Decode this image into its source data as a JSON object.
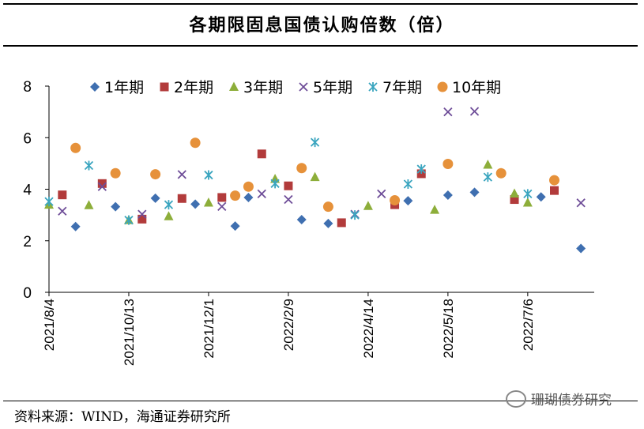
{
  "header": {
    "title": "各期限固息国债认购倍数（倍）"
  },
  "footer": {
    "source": "资料来源：WIND，海通证券研究所",
    "watermark": "珊瑚债券研究"
  },
  "chart_data": {
    "type": "scatter",
    "title": "各期限固息国债认购倍数（倍）",
    "xlabel": "",
    "ylabel": "",
    "ylim": [
      0,
      8
    ],
    "yticks": [
      0,
      2,
      4,
      6,
      8
    ],
    "xlim": [
      0,
      20.5
    ],
    "xticks": [
      {
        "pos": 0,
        "label": "2021/8/4"
      },
      {
        "pos": 3,
        "label": "2021/10/13"
      },
      {
        "pos": 6,
        "label": "2021/12/1"
      },
      {
        "pos": 9,
        "label": "2022/2/9"
      },
      {
        "pos": 12,
        "label": "2022/4/14"
      },
      {
        "pos": 15,
        "label": "2022/5/18"
      },
      {
        "pos": 18,
        "label": "2022/7/6"
      }
    ],
    "legend_position": "top",
    "series": [
      {
        "name": "1年期",
        "marker": "diamond",
        "color": "#3f6fb0",
        "points": [
          [
            1,
            2.55
          ],
          [
            2.5,
            3.32
          ],
          [
            4,
            3.65
          ],
          [
            5.5,
            3.42
          ],
          [
            7,
            2.57
          ],
          [
            7.5,
            3.68
          ],
          [
            9.5,
            2.82
          ],
          [
            10.5,
            2.67
          ],
          [
            13.5,
            3.55
          ],
          [
            15,
            3.77
          ],
          [
            16,
            3.88
          ],
          [
            18.5,
            3.7
          ],
          [
            20,
            1.7
          ]
        ]
      },
      {
        "name": "2年期",
        "marker": "square",
        "color": "#b23b3b",
        "points": [
          [
            0.5,
            3.78
          ],
          [
            2,
            4.22
          ],
          [
            3.5,
            2.84
          ],
          [
            5,
            3.64
          ],
          [
            6.5,
            3.68
          ],
          [
            8,
            5.37
          ],
          [
            9,
            4.13
          ],
          [
            11,
            2.7
          ],
          [
            13,
            3.4
          ],
          [
            14,
            4.6
          ],
          [
            17.5,
            3.6
          ],
          [
            19,
            3.95
          ]
        ]
      },
      {
        "name": "3年期",
        "marker": "triangle",
        "color": "#8dae3a",
        "points": [
          [
            0,
            3.4
          ],
          [
            1.5,
            3.38
          ],
          [
            3,
            2.8
          ],
          [
            4.5,
            2.95
          ],
          [
            6,
            3.48
          ],
          [
            8.5,
            4.4
          ],
          [
            10,
            4.47
          ],
          [
            12,
            3.35
          ],
          [
            14.5,
            3.2
          ],
          [
            16.5,
            4.95
          ],
          [
            17.5,
            3.83
          ],
          [
            18,
            3.48
          ]
        ]
      },
      {
        "name": "5年期",
        "marker": "x",
        "color": "#6e4d98",
        "points": [
          [
            0.5,
            3.15
          ],
          [
            2,
            4.1
          ],
          [
            3.5,
            3.03
          ],
          [
            5,
            4.57
          ],
          [
            6.5,
            3.33
          ],
          [
            8,
            3.82
          ],
          [
            9,
            3.6
          ],
          [
            11.5,
            3.03
          ],
          [
            12.5,
            3.82
          ],
          [
            15,
            7.0
          ],
          [
            16,
            7.02
          ],
          [
            20,
            3.47
          ]
        ]
      },
      {
        "name": "7年期",
        "marker": "star",
        "color": "#3aa5bf",
        "points": [
          [
            0,
            3.52
          ],
          [
            1.5,
            4.92
          ],
          [
            3,
            2.8
          ],
          [
            4.5,
            3.4
          ],
          [
            6,
            4.55
          ],
          [
            8.5,
            4.22
          ],
          [
            10,
            5.82
          ],
          [
            11.5,
            3.0
          ],
          [
            13.5,
            4.2
          ],
          [
            14,
            4.78
          ],
          [
            16.5,
            4.47
          ],
          [
            18,
            3.82
          ]
        ]
      },
      {
        "name": "10年期",
        "marker": "circle",
        "color": "#e6913a",
        "points": [
          [
            1,
            5.6
          ],
          [
            2.5,
            4.62
          ],
          [
            4,
            4.58
          ],
          [
            5.5,
            5.8
          ],
          [
            7,
            3.75
          ],
          [
            7.5,
            4.1
          ],
          [
            9.5,
            4.82
          ],
          [
            10.5,
            3.32
          ],
          [
            13,
            3.57
          ],
          [
            15,
            4.98
          ],
          [
            17,
            4.62
          ],
          [
            19,
            4.35
          ]
        ]
      }
    ]
  }
}
